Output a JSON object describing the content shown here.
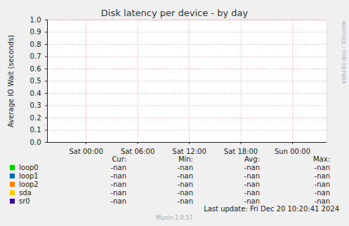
{
  "chart_data": {
    "type": "line",
    "title": "Disk latency per device - by day",
    "y_label": "Average IO Wait (seconds)",
    "x": [],
    "xlim": [
      -4.5,
      28
    ],
    "xticks": [
      {
        "value": 0,
        "label": "Sat 00:00"
      },
      {
        "value": 6,
        "label": "Sat 06:00"
      },
      {
        "value": 12,
        "label": "Sat 12:00"
      },
      {
        "value": 18,
        "label": "Sat 18:00"
      },
      {
        "value": 24,
        "label": "Sun 00:00"
      }
    ],
    "ylim": [
      0,
      1
    ],
    "yticks": [
      {
        "value": 0,
        "label": "0.0"
      },
      0.1,
      0.2,
      0.3,
      0.4,
      0.5,
      0.6,
      0.7,
      0.8,
      0.9,
      {
        "value": 1,
        "label": "1.0"
      }
    ],
    "grid": true,
    "legend": "bottom",
    "stat_columns": [
      "Cur:",
      "Min:",
      "Avg:",
      "Max:"
    ],
    "series": [
      {
        "name": "loop0",
        "color": "#00cc00",
        "values": [],
        "stats": [
          "-nan",
          "-nan",
          "-nan",
          "-nan"
        ]
      },
      {
        "name": "loop1",
        "color": "#0066b3",
        "values": [],
        "stats": [
          "-nan",
          "-nan",
          "-nan",
          "-nan"
        ]
      },
      {
        "name": "loop2",
        "color": "#ff8000",
        "values": [],
        "stats": [
          "-nan",
          "-nan",
          "-nan",
          "-nan"
        ]
      },
      {
        "name": "sda",
        "color": "#ffcc00",
        "values": [],
        "stats": [
          "-nan",
          "-nan",
          "-nan",
          "-nan"
        ]
      },
      {
        "name": "sr0",
        "color": "#330099",
        "values": [],
        "stats": [
          "-nan",
          "-nan",
          "-nan",
          "-nan"
        ]
      }
    ],
    "last_update": "Last update: Fri Dec 20 10:20:41 2024",
    "footer": "Munin 2.0.57",
    "watermark": "RRDTOOL / TOBI OETIKER"
  }
}
